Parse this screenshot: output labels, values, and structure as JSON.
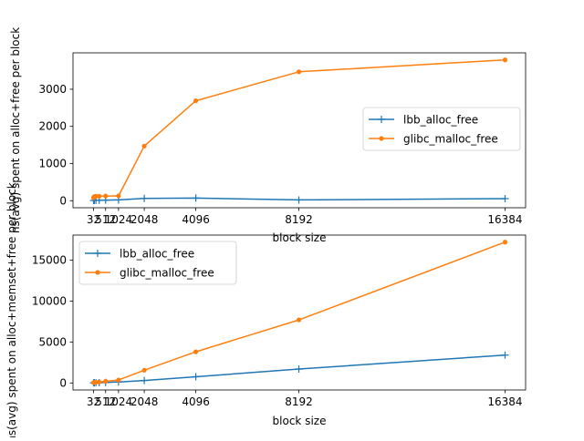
{
  "chart_data": [
    {
      "type": "line",
      "title": "",
      "xlabel": "block size",
      "ylabel": "ns(avg) spent on alloc+free per block",
      "x": [
        32,
        64,
        128,
        256,
        512,
        1024,
        2048,
        4096,
        8192,
        16384
      ],
      "xticks": [
        32,
        512,
        1024,
        2048,
        4096,
        8192,
        16384
      ],
      "xlim": [
        -784,
        17200
      ],
      "ylim": [
        -190,
        3980
      ],
      "yticks": [
        0,
        1000,
        2000,
        3000
      ],
      "legend_position": "center-right",
      "grid": false,
      "series": [
        {
          "name": "lbb_alloc_free",
          "color": "#1f77b4",
          "marker": "plus",
          "values": [
            5,
            8,
            10,
            12,
            15,
            20,
            60,
            70,
            20,
            55
          ]
        },
        {
          "name": "glibc_malloc_free",
          "color": "#ff7f0e",
          "marker": "dot",
          "values": [
            80,
            110,
            120,
            120,
            125,
            130,
            1470,
            2690,
            3470,
            3790
          ]
        }
      ]
    },
    {
      "type": "line",
      "title": "",
      "xlabel": "block size",
      "ylabel": "ns(avg) spent on alloc+memset+free per block",
      "x": [
        32,
        64,
        128,
        256,
        512,
        1024,
        2048,
        4096,
        8192,
        16384
      ],
      "xticks": [
        32,
        512,
        1024,
        2048,
        4096,
        8192,
        16384
      ],
      "xlim": [
        -784,
        17200
      ],
      "ylim": [
        -860,
        18060
      ],
      "yticks": [
        0,
        5000,
        10000,
        15000
      ],
      "legend_position": "upper-left",
      "grid": false,
      "series": [
        {
          "name": "lbb_alloc_free",
          "color": "#1f77b4",
          "marker": "plus",
          "values": [
            10,
            15,
            20,
            30,
            60,
            120,
            300,
            750,
            1700,
            3400
          ]
        },
        {
          "name": "glibc_malloc_free",
          "color": "#ff7f0e",
          "marker": "dot",
          "values": [
            40,
            60,
            80,
            120,
            200,
            350,
            1550,
            3800,
            7700,
            17200
          ]
        }
      ]
    }
  ]
}
